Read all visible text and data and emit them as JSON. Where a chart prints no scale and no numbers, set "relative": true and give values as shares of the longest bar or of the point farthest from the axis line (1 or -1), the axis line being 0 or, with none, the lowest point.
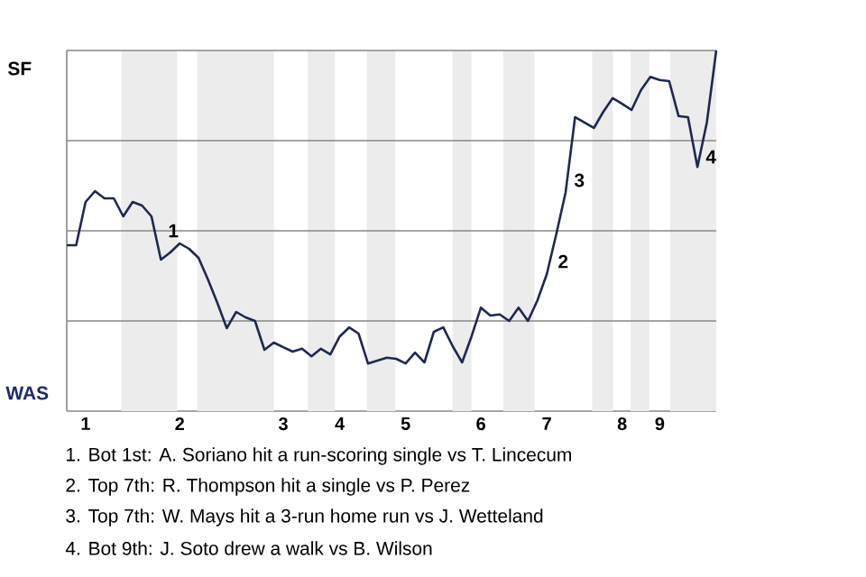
{
  "chart_data": {
    "type": "line",
    "relative": true,
    "categories": [
      null,
      null,
      "1",
      null,
      null,
      null,
      null,
      null,
      null,
      null,
      null,
      null,
      "2",
      null,
      null,
      null,
      null,
      null,
      null,
      null,
      null,
      null,
      null,
      "3",
      null,
      null,
      null,
      null,
      null,
      "4",
      null,
      null,
      null,
      null,
      null,
      null,
      "5",
      null,
      null,
      null,
      null,
      null,
      null,
      null,
      "6",
      null,
      null,
      null,
      null,
      null,
      null,
      "7",
      null,
      null,
      null,
      null,
      null,
      null,
      null,
      "8",
      null,
      null,
      null,
      "9",
      null,
      null,
      null,
      null,
      null,
      null
    ],
    "series": [
      {
        "color": "#1c2951",
        "values": [
          0.46,
          0.46,
          0.58,
          0.61,
          0.59,
          0.59,
          0.54,
          0.58,
          0.57,
          0.54,
          0.42,
          0.44,
          0.465,
          0.45,
          0.425,
          0.365,
          0.3,
          0.23,
          0.275,
          0.26,
          0.25,
          0.17,
          0.19,
          0.177,
          0.165,
          0.173,
          0.152,
          0.173,
          0.157,
          0.207,
          0.232,
          0.215,
          0.132,
          0.14,
          0.148,
          0.145,
          0.132,
          0.162,
          0.135,
          0.22,
          0.232,
          0.18,
          0.135,
          0.207,
          0.287,
          0.265,
          0.268,
          0.25,
          0.287,
          0.25,
          0.307,
          0.38,
          0.49,
          0.607,
          0.815,
          0.8,
          0.785,
          0.83,
          0.868,
          0.852,
          0.835,
          0.89,
          0.927,
          0.918,
          0.915,
          0.818,
          0.815,
          0.677,
          0.8,
          1.0
        ]
      }
    ],
    "ref_lines": [
      {
        "axis": "y",
        "value": 0.25,
        "color": "#888888"
      },
      {
        "axis": "y",
        "value": 0.5,
        "color": "#888888"
      },
      {
        "axis": "y",
        "value": 0.75,
        "color": "#888888"
      },
      {
        "axis": "y",
        "value": 1,
        "color": "#888888"
      }
    ],
    "annotations": [
      "1",
      "2",
      "3",
      "4",
      "SF",
      "WAS",
      "1. Bot 1st: A. Soriano hit a run-scoring single vs T. Lincecum",
      "2. Top 7th: R. Thompson hit a single vs P. Perez",
      "3. Top 7th: W. Mays hit a 3-run home run vs J. Wetteland",
      "4. Bot 9th: J. Soto drew a walk vs B. Wilson"
    ],
    "grid": false,
    "marker": "none",
    "line_style": "solid"
  }
}
